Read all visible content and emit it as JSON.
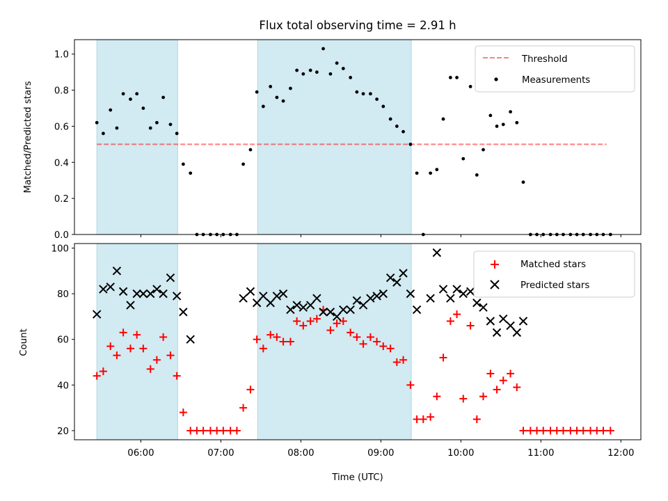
{
  "figure_title": "Flux total observing time = 2.91 h",
  "colors": {
    "shade": "#add8e6",
    "threshold": "#ff0000",
    "measurements": "#000000",
    "matched": "#ff0000",
    "predicted": "#000000",
    "axes": "#000000"
  },
  "chart_data": [
    {
      "type": "scatter",
      "title": "Flux total observing time = 2.91 h",
      "xlabel": "",
      "ylabel": "Matched/Predicted stars",
      "x_unit": "hours (UTC)",
      "xlim": [
        5.17,
        12.25
      ],
      "ylim": [
        0,
        1.08
      ],
      "yticks": [
        0.0,
        0.2,
        0.4,
        0.6,
        0.8,
        1.0
      ],
      "ytick_labels": [
        "0.0",
        "0.2",
        "0.4",
        "0.6",
        "0.8",
        "1.0"
      ],
      "grid": false,
      "legend_position": "top-right",
      "shaded_spans": [
        [
          5.45,
          6.46
        ],
        [
          7.46,
          9.38
        ]
      ],
      "threshold": {
        "name": "Threshold",
        "y": 0.5,
        "x_range": [
          5.45,
          11.82
        ],
        "style": "dashed"
      },
      "series": [
        {
          "name": "Measurements",
          "marker": "dot",
          "points": [
            [
              5.45,
              0.62
            ],
            [
              5.53,
              0.56
            ],
            [
              5.62,
              0.69
            ],
            [
              5.7,
              0.59
            ],
            [
              5.78,
              0.78
            ],
            [
              5.87,
              0.75
            ],
            [
              5.95,
              0.78
            ],
            [
              6.03,
              0.7
            ],
            [
              6.12,
              0.59
            ],
            [
              6.2,
              0.62
            ],
            [
              6.28,
              0.76
            ],
            [
              6.37,
              0.61
            ],
            [
              6.45,
              0.56
            ],
            [
              6.53,
              0.39
            ],
            [
              6.62,
              0.34
            ],
            [
              6.7,
              0.0
            ],
            [
              6.78,
              0.0
            ],
            [
              6.87,
              0.0
            ],
            [
              6.95,
              0.0
            ],
            [
              7.03,
              0.0
            ],
            [
              7.12,
              0.0
            ],
            [
              7.2,
              0.0
            ],
            [
              7.28,
              0.39
            ],
            [
              7.37,
              0.47
            ],
            [
              7.45,
              0.79
            ],
            [
              7.53,
              0.71
            ],
            [
              7.62,
              0.82
            ],
            [
              7.7,
              0.76
            ],
            [
              7.78,
              0.74
            ],
            [
              7.87,
              0.81
            ],
            [
              7.95,
              0.91
            ],
            [
              8.03,
              0.89
            ],
            [
              8.12,
              0.91
            ],
            [
              8.2,
              0.9
            ],
            [
              8.28,
              1.03
            ],
            [
              8.37,
              0.89
            ],
            [
              8.45,
              0.95
            ],
            [
              8.53,
              0.92
            ],
            [
              8.62,
              0.87
            ],
            [
              8.7,
              0.79
            ],
            [
              8.78,
              0.78
            ],
            [
              8.87,
              0.78
            ],
            [
              8.95,
              0.75
            ],
            [
              9.03,
              0.71
            ],
            [
              9.12,
              0.64
            ],
            [
              9.2,
              0.6
            ],
            [
              9.28,
              0.57
            ],
            [
              9.37,
              0.5
            ],
            [
              9.45,
              0.34
            ],
            [
              9.53,
              0.0
            ],
            [
              9.62,
              0.34
            ],
            [
              9.7,
              0.36
            ],
            [
              9.78,
              0.64
            ],
            [
              9.87,
              0.87
            ],
            [
              9.95,
              0.87
            ],
            [
              10.03,
              0.42
            ],
            [
              10.12,
              0.82
            ],
            [
              10.2,
              0.33
            ],
            [
              10.28,
              0.47
            ],
            [
              10.37,
              0.66
            ],
            [
              10.45,
              0.6
            ],
            [
              10.53,
              0.61
            ],
            [
              10.62,
              0.68
            ],
            [
              10.7,
              0.62
            ],
            [
              10.78,
              0.29
            ],
            [
              10.87,
              0.0
            ],
            [
              10.95,
              0.0
            ],
            [
              11.03,
              0.0
            ],
            [
              11.12,
              0.0
            ],
            [
              11.2,
              0.0
            ],
            [
              11.28,
              0.0
            ],
            [
              11.37,
              0.0
            ],
            [
              11.45,
              0.0
            ],
            [
              11.53,
              0.0
            ],
            [
              11.62,
              0.0
            ],
            [
              11.7,
              0.0
            ],
            [
              11.78,
              0.0
            ],
            [
              11.87,
              0.0
            ]
          ]
        }
      ]
    },
    {
      "type": "scatter",
      "title": "",
      "xlabel": "Time (UTC)",
      "ylabel": "Count",
      "x_unit": "hours (UTC)",
      "xlim": [
        5.17,
        12.25
      ],
      "ylim": [
        16,
        102
      ],
      "xticks": [
        6,
        7,
        8,
        9,
        10,
        11,
        12
      ],
      "xtick_labels": [
        "06:00",
        "07:00",
        "08:00",
        "09:00",
        "10:00",
        "11:00",
        "12:00"
      ],
      "yticks": [
        20,
        40,
        60,
        80,
        100
      ],
      "ytick_labels": [
        "20",
        "40",
        "60",
        "80",
        "100"
      ],
      "grid": false,
      "legend_position": "top-right",
      "shaded_spans": [
        [
          5.45,
          6.46
        ],
        [
          7.46,
          9.38
        ]
      ],
      "series": [
        {
          "name": "Matched stars",
          "marker": "plus",
          "points": [
            [
              5.45,
              44
            ],
            [
              5.53,
              46
            ],
            [
              5.62,
              57
            ],
            [
              5.7,
              53
            ],
            [
              5.78,
              63
            ],
            [
              5.87,
              56
            ],
            [
              5.95,
              62
            ],
            [
              6.03,
              56
            ],
            [
              6.12,
              47
            ],
            [
              6.2,
              51
            ],
            [
              6.28,
              61
            ],
            [
              6.37,
              53
            ],
            [
              6.45,
              44
            ],
            [
              6.53,
              28
            ],
            [
              6.62,
              20
            ],
            [
              6.7,
              20
            ],
            [
              6.78,
              20
            ],
            [
              6.87,
              20
            ],
            [
              6.95,
              20
            ],
            [
              7.03,
              20
            ],
            [
              7.12,
              20
            ],
            [
              7.2,
              20
            ],
            [
              7.28,
              30
            ],
            [
              7.37,
              38
            ],
            [
              7.45,
              60
            ],
            [
              7.53,
              56
            ],
            [
              7.62,
              62
            ],
            [
              7.7,
              61
            ],
            [
              7.78,
              59
            ],
            [
              7.87,
              59
            ],
            [
              7.95,
              68
            ],
            [
              8.03,
              66
            ],
            [
              8.12,
              68
            ],
            [
              8.2,
              69
            ],
            [
              8.28,
              73
            ],
            [
              8.37,
              64
            ],
            [
              8.45,
              67
            ],
            [
              8.53,
              68
            ],
            [
              8.62,
              63
            ],
            [
              8.7,
              61
            ],
            [
              8.78,
              58
            ],
            [
              8.87,
              61
            ],
            [
              8.95,
              59
            ],
            [
              9.03,
              57
            ],
            [
              9.12,
              56
            ],
            [
              9.2,
              50
            ],
            [
              9.28,
              51
            ],
            [
              9.37,
              40
            ],
            [
              9.45,
              25
            ],
            [
              9.53,
              25
            ],
            [
              9.62,
              26
            ],
            [
              9.7,
              35
            ],
            [
              9.78,
              52
            ],
            [
              9.87,
              68
            ],
            [
              9.95,
              71
            ],
            [
              10.03,
              34
            ],
            [
              10.12,
              66
            ],
            [
              10.2,
              25
            ],
            [
              10.28,
              35
            ],
            [
              10.37,
              45
            ],
            [
              10.45,
              38
            ],
            [
              10.53,
              42
            ],
            [
              10.62,
              45
            ],
            [
              10.7,
              39
            ],
            [
              10.78,
              20
            ],
            [
              10.87,
              20
            ],
            [
              10.95,
              20
            ],
            [
              11.03,
              20
            ],
            [
              11.12,
              20
            ],
            [
              11.2,
              20
            ],
            [
              11.28,
              20
            ],
            [
              11.37,
              20
            ],
            [
              11.45,
              20
            ],
            [
              11.53,
              20
            ],
            [
              11.62,
              20
            ],
            [
              11.7,
              20
            ],
            [
              11.78,
              20
            ],
            [
              11.87,
              20
            ]
          ]
        },
        {
          "name": "Predicted stars",
          "marker": "x",
          "points": [
            [
              5.45,
              71
            ],
            [
              5.53,
              82
            ],
            [
              5.62,
              83
            ],
            [
              5.7,
              90
            ],
            [
              5.78,
              81
            ],
            [
              5.87,
              75
            ],
            [
              5.95,
              80
            ],
            [
              6.03,
              80
            ],
            [
              6.12,
              80
            ],
            [
              6.2,
              82
            ],
            [
              6.28,
              80
            ],
            [
              6.37,
              87
            ],
            [
              6.45,
              79
            ],
            [
              6.53,
              72
            ],
            [
              6.62,
              60
            ],
            [
              7.28,
              78
            ],
            [
              7.37,
              81
            ],
            [
              7.45,
              76
            ],
            [
              7.53,
              79
            ],
            [
              7.62,
              76
            ],
            [
              7.7,
              79
            ],
            [
              7.78,
              80
            ],
            [
              7.87,
              73
            ],
            [
              7.95,
              75
            ],
            [
              8.03,
              74
            ],
            [
              8.12,
              75
            ],
            [
              8.2,
              78
            ],
            [
              8.28,
              72
            ],
            [
              8.37,
              72
            ],
            [
              8.45,
              70
            ],
            [
              8.53,
              73
            ],
            [
              8.62,
              73
            ],
            [
              8.7,
              77
            ],
            [
              8.78,
              75
            ],
            [
              8.87,
              78
            ],
            [
              8.95,
              79
            ],
            [
              9.03,
              80
            ],
            [
              9.12,
              87
            ],
            [
              9.2,
              85
            ],
            [
              9.28,
              89
            ],
            [
              9.37,
              80
            ],
            [
              9.45,
              73
            ],
            [
              9.62,
              78
            ],
            [
              9.7,
              98
            ],
            [
              9.78,
              82
            ],
            [
              9.87,
              78
            ],
            [
              9.95,
              82
            ],
            [
              10.03,
              80
            ],
            [
              10.12,
              81
            ],
            [
              10.2,
              76
            ],
            [
              10.28,
              74
            ],
            [
              10.37,
              68
            ],
            [
              10.45,
              63
            ],
            [
              10.53,
              69
            ],
            [
              10.62,
              66
            ],
            [
              10.7,
              63
            ],
            [
              10.78,
              68
            ]
          ]
        }
      ]
    }
  ]
}
